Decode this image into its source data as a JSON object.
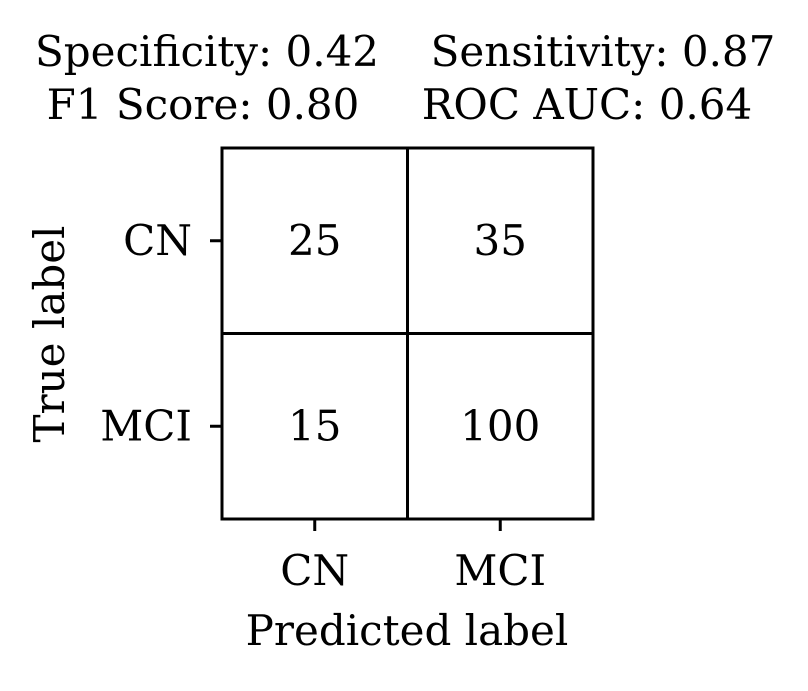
{
  "chart_data": {
    "type": "heatmap",
    "title_lines": [
      [
        "Specificity: 0.42",
        "Sensitivity: 0.87"
      ],
      [
        "F1 Score: 0.80",
        "ROC AUC: 0.64"
      ]
    ],
    "xlabel": "Predicted label",
    "ylabel": "True label",
    "x_categories": [
      "CN",
      "MCI"
    ],
    "y_categories": [
      "CN",
      "MCI"
    ],
    "matrix": [
      [
        25,
        35
      ],
      [
        15,
        100
      ]
    ],
    "grid": true,
    "colors": {
      "cell_fill": "#ffffff",
      "line": "#000000",
      "text": "#000000"
    }
  }
}
